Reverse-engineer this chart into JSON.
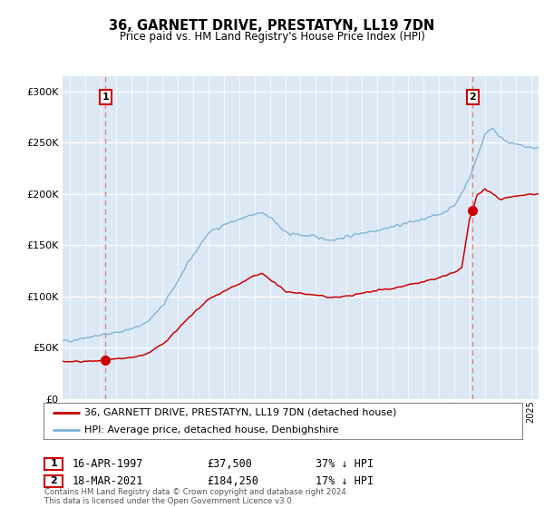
{
  "title": "36, GARNETT DRIVE, PRESTATYN, LL19 7DN",
  "subtitle": "Price paid vs. HM Land Registry's House Price Index (HPI)",
  "ylabel_ticks": [
    "£0",
    "£50K",
    "£100K",
    "£150K",
    "£200K",
    "£250K",
    "£300K"
  ],
  "ytick_values": [
    0,
    50000,
    100000,
    150000,
    200000,
    250000,
    300000
  ],
  "ylim": [
    0,
    315000
  ],
  "xlim_start": 1994.5,
  "xlim_end": 2025.5,
  "background_color": "#dce9f5",
  "grid_color": "#ffffff",
  "sale1_x": 1997.29,
  "sale1_y": 37500,
  "sale2_x": 2021.21,
  "sale2_y": 184250,
  "red_line_color": "#cc0000",
  "blue_line_color": "#7fb3d8",
  "marker_color": "#cc0000",
  "vline_color": "#e08080",
  "legend_label_red": "36, GARNETT DRIVE, PRESTATYN, LL19 7DN (detached house)",
  "legend_label_blue": "HPI: Average price, detached house, Denbighshire",
  "footnote": "Contains HM Land Registry data © Crown copyright and database right 2024.\nThis data is licensed under the Open Government Licence v3.0.",
  "hpi_keypoints": [
    [
      1994.5,
      56000
    ],
    [
      1995.0,
      57000
    ],
    [
      1996.0,
      60000
    ],
    [
      1997.0,
      62000
    ],
    [
      1998.0,
      65000
    ],
    [
      1999.0,
      68000
    ],
    [
      2000.0,
      75000
    ],
    [
      2001.0,
      90000
    ],
    [
      2002.0,
      115000
    ],
    [
      2003.0,
      140000
    ],
    [
      2004.0,
      162000
    ],
    [
      2005.0,
      170000
    ],
    [
      2006.0,
      175000
    ],
    [
      2007.5,
      182000
    ],
    [
      2008.0,
      178000
    ],
    [
      2009.0,
      162000
    ],
    [
      2010.0,
      160000
    ],
    [
      2011.0,
      158000
    ],
    [
      2012.0,
      155000
    ],
    [
      2013.0,
      158000
    ],
    [
      2014.0,
      162000
    ],
    [
      2015.0,
      165000
    ],
    [
      2016.0,
      168000
    ],
    [
      2017.0,
      172000
    ],
    [
      2018.0,
      175000
    ],
    [
      2019.0,
      180000
    ],
    [
      2020.0,
      188000
    ],
    [
      2021.0,
      215000
    ],
    [
      2022.0,
      258000
    ],
    [
      2022.5,
      265000
    ],
    [
      2023.0,
      255000
    ],
    [
      2024.0,
      248000
    ],
    [
      2025.0,
      245000
    ],
    [
      2025.5,
      245000
    ]
  ],
  "red_keypoints": [
    [
      1994.5,
      36500
    ],
    [
      1995.0,
      36000
    ],
    [
      1996.0,
      36500
    ],
    [
      1997.0,
      37000
    ],
    [
      1997.29,
      37500
    ],
    [
      1998.0,
      38500
    ],
    [
      1999.0,
      40000
    ],
    [
      2000.0,
      44000
    ],
    [
      2001.0,
      53000
    ],
    [
      2002.0,
      68000
    ],
    [
      2003.0,
      83000
    ],
    [
      2004.0,
      97000
    ],
    [
      2005.0,
      105000
    ],
    [
      2006.0,
      112000
    ],
    [
      2007.0,
      120000
    ],
    [
      2007.5,
      122000
    ],
    [
      2008.0,
      117000
    ],
    [
      2009.0,
      105000
    ],
    [
      2010.0,
      103000
    ],
    [
      2011.0,
      101000
    ],
    [
      2012.0,
      99000
    ],
    [
      2013.0,
      100000
    ],
    [
      2014.0,
      103000
    ],
    [
      2015.0,
      106000
    ],
    [
      2016.0,
      108000
    ],
    [
      2017.0,
      111000
    ],
    [
      2018.0,
      114000
    ],
    [
      2019.0,
      118000
    ],
    [
      2020.0,
      123000
    ],
    [
      2020.5,
      128000
    ],
    [
      2021.0,
      175000
    ],
    [
      2021.21,
      184250
    ],
    [
      2021.5,
      198000
    ],
    [
      2022.0,
      205000
    ],
    [
      2022.5,
      200000
    ],
    [
      2023.0,
      195000
    ],
    [
      2024.0,
      198000
    ],
    [
      2025.0,
      200000
    ],
    [
      2025.5,
      200000
    ]
  ]
}
